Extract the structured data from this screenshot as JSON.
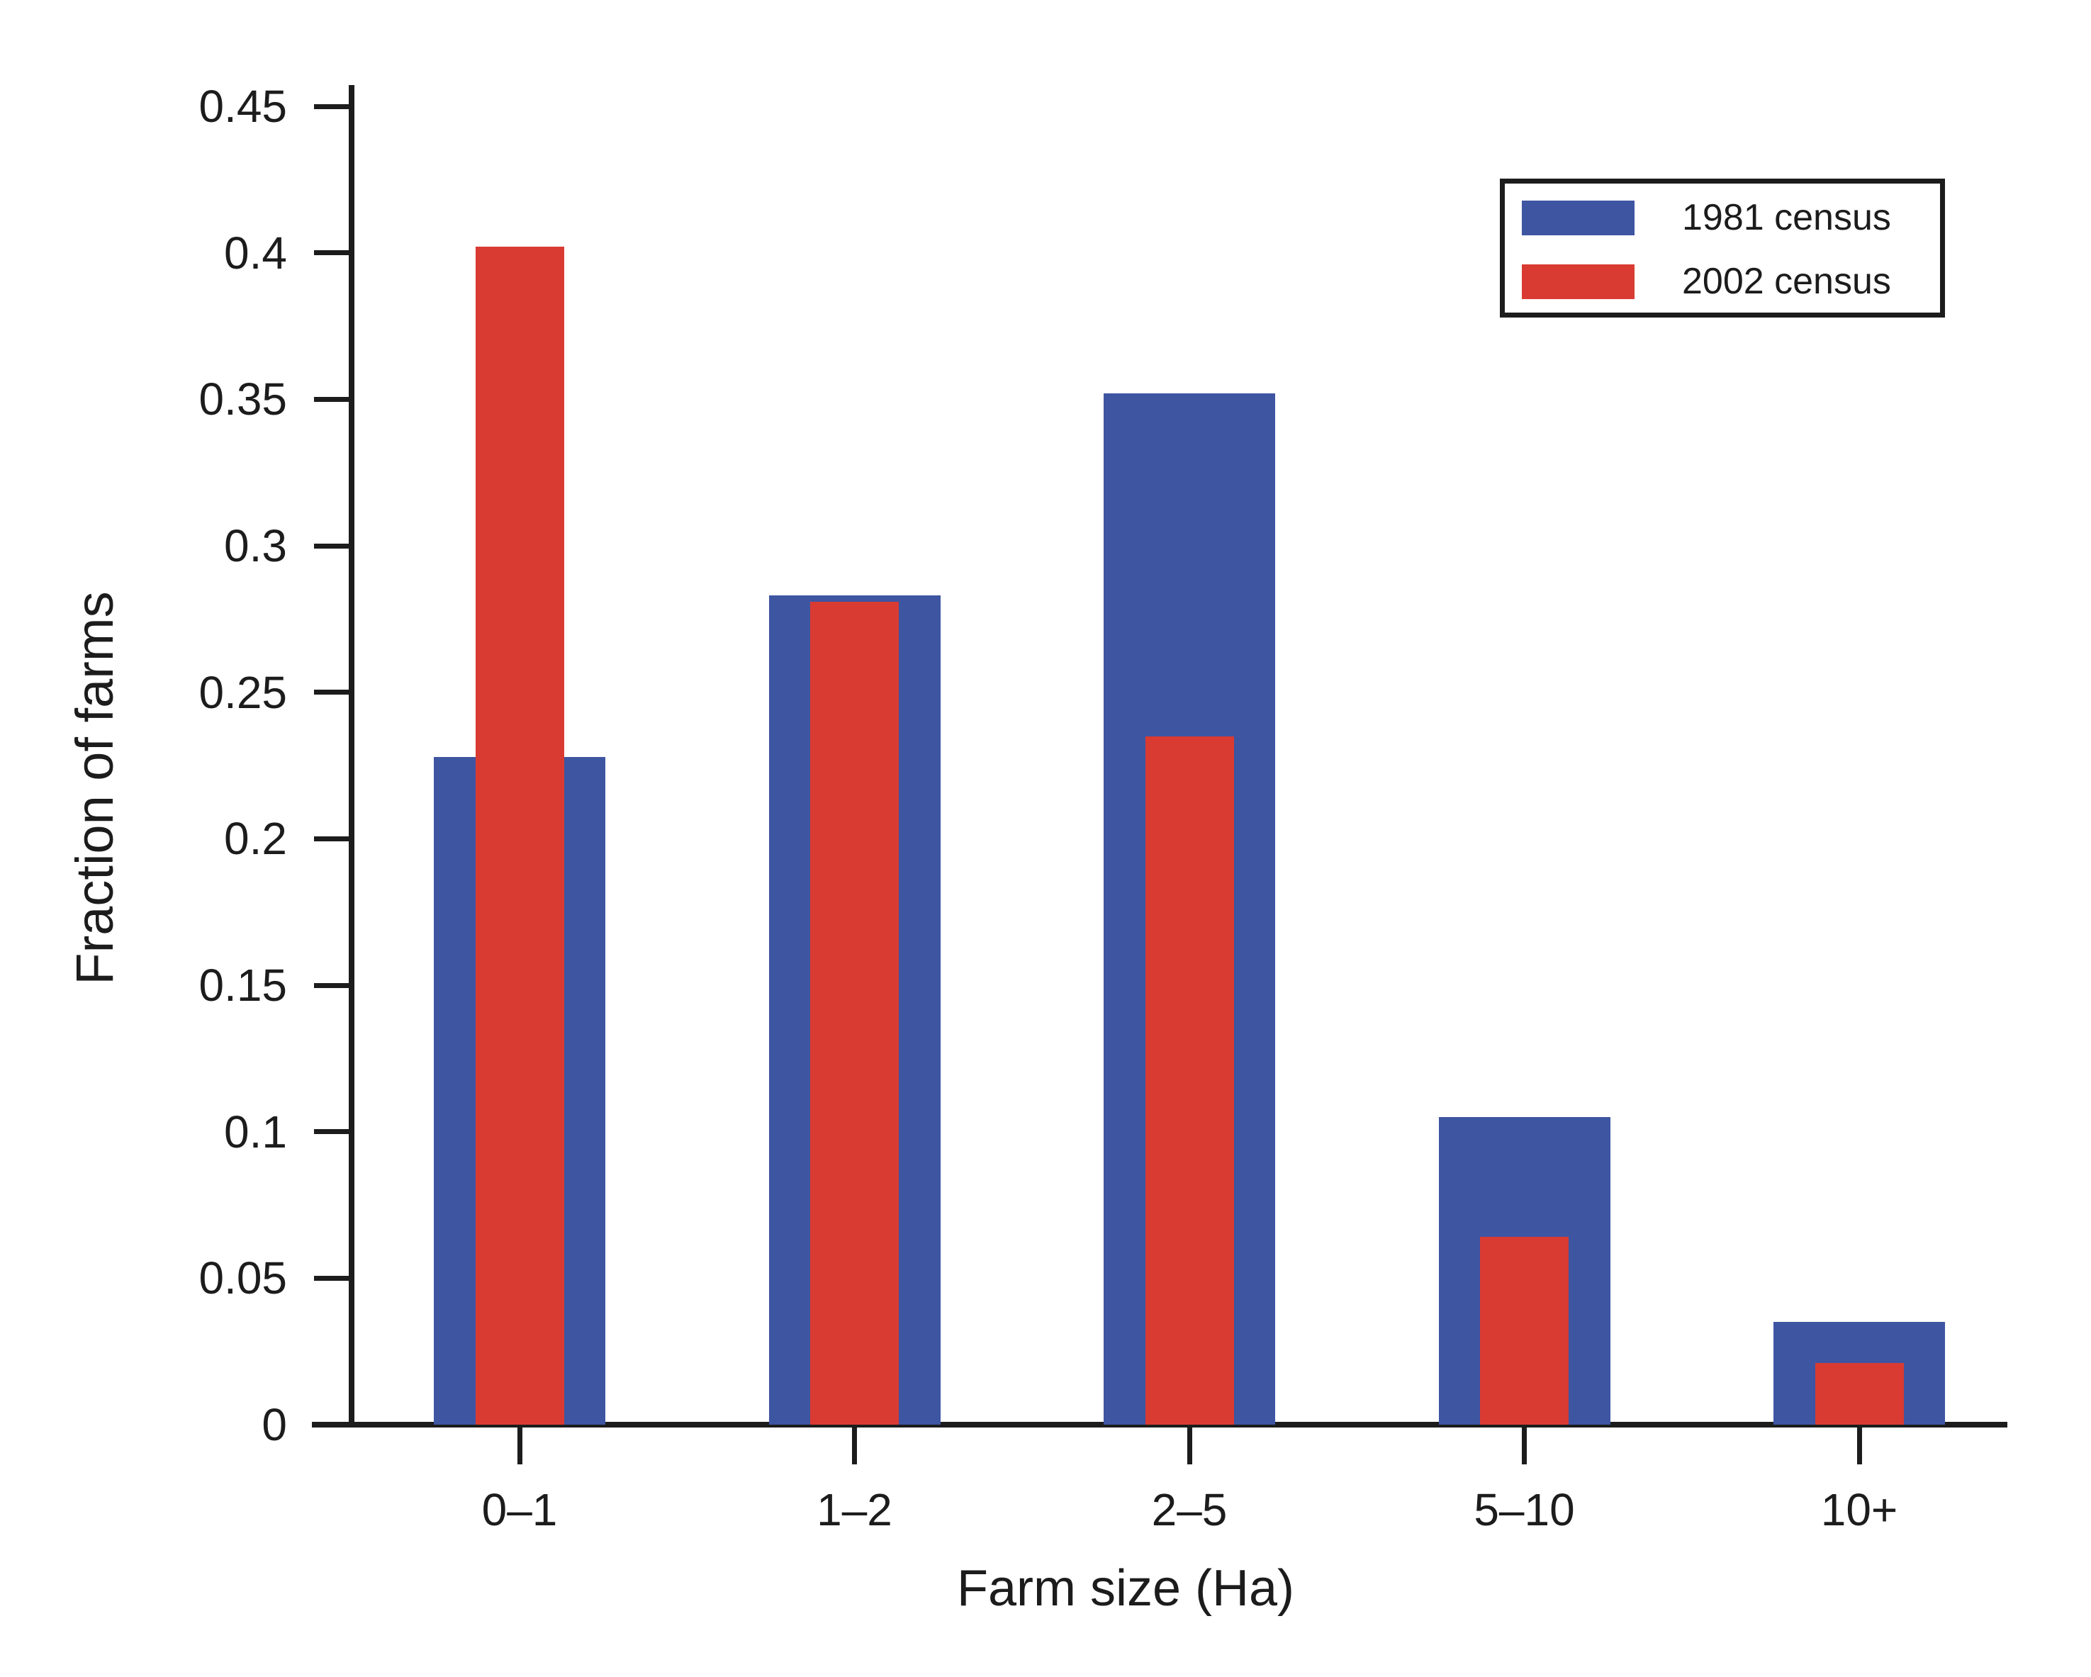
{
  "chart_data": {
    "type": "bar",
    "title": "",
    "categories": [
      "0–1",
      "1–2",
      "2–5",
      "5–10",
      "10+"
    ],
    "series": [
      {
        "name": "1981 census",
        "color": "#3E55A2",
        "values": [
          0.228,
          0.283,
          0.352,
          0.105,
          0.035
        ]
      },
      {
        "name": "2002 census",
        "color": "#D93B32",
        "values": [
          0.402,
          0.281,
          0.235,
          0.064,
          0.021
        ]
      }
    ],
    "xlabel": "Farm size (Ha)",
    "ylabel": "Fraction of farms",
    "ylim": [
      0,
      0.45
    ],
    "y_ticks": [
      "0",
      "0.05",
      "0.1",
      "0.15",
      "0.2",
      "0.25",
      "0.3",
      "0.35",
      "0.4",
      "0.45"
    ],
    "grid": false,
    "legend_position": "top-right",
    "bar_style": "overlaid-nested"
  },
  "colors": {
    "axis": "#1C1C1C",
    "text": "#1C1C1C",
    "background": "#FFFFFF"
  }
}
